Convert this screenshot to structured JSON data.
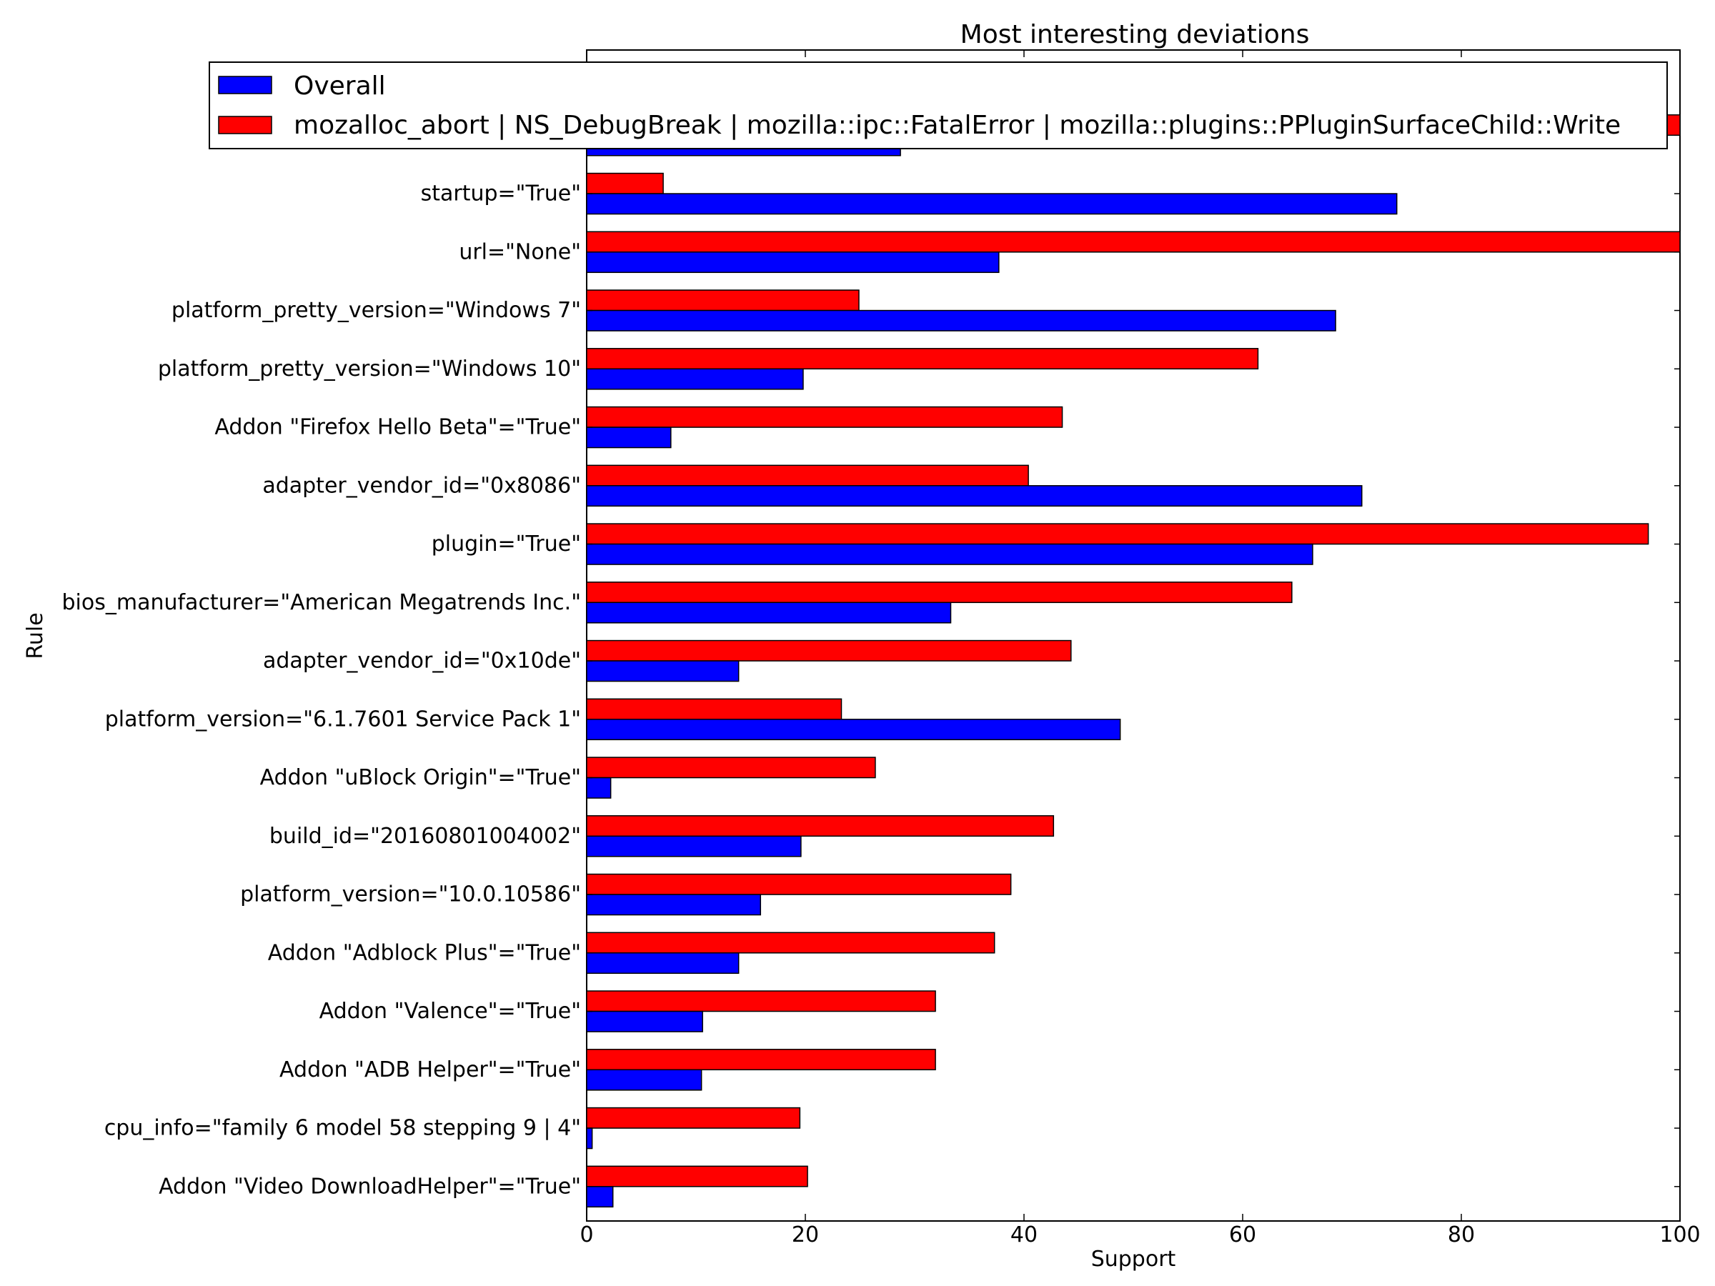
{
  "chart_data": {
    "type": "bar",
    "orientation": "horizontal",
    "title": "Most interesting deviations",
    "xlabel": "Support",
    "ylabel": "Rule",
    "xlim": [
      0,
      100
    ],
    "xticks": [
      0,
      20,
      40,
      60,
      80,
      100
    ],
    "grid": false,
    "legend_position": "top",
    "categories": [
      "",
      "startup=\"True\"",
      "url=\"None\"",
      "platform_pretty_version=\"Windows 7\"",
      "platform_pretty_version=\"Windows 10\"",
      "Addon \"Firefox Hello Beta\"=\"True\"",
      "adapter_vendor_id=\"0x8086\"",
      "plugin=\"True\"",
      "bios_manufacturer=\"American Megatrends Inc.\"",
      "adapter_vendor_id=\"0x10de\"",
      "platform_version=\"6.1.7601 Service Pack 1\"",
      "Addon \"uBlock Origin\"=\"True\"",
      "build_id=\"20160801004002\"",
      "platform_version=\"10.0.10586\"",
      "Addon \"Adblock Plus\"=\"True\"",
      "Addon \"Valence\"=\"True\"",
      "Addon \"ADB Helper\"=\"True\"",
      "cpu_info=\"family 6 model 58 stepping 9 | 4\"",
      "Addon \"Video DownloadHelper\"=\"True\""
    ],
    "series": [
      {
        "name": "Overall",
        "color": "#0000ff",
        "values": [
          28.7,
          74.1,
          37.7,
          68.5,
          19.8,
          7.7,
          70.9,
          66.4,
          33.3,
          13.9,
          48.8,
          2.2,
          19.6,
          15.9,
          13.9,
          10.6,
          10.5,
          0.5,
          2.4
        ]
      },
      {
        "name": "mozalloc_abort | NS_DebugBreak | mozilla::ipc::FatalError | mozilla::plugins::PPluginSurfaceChild::Write",
        "color": "#ff0000",
        "values": [
          100.0,
          7.0,
          100.0,
          24.9,
          61.4,
          43.5,
          40.4,
          97.1,
          64.5,
          44.3,
          23.3,
          26.4,
          42.7,
          38.8,
          37.3,
          31.9,
          31.9,
          19.5,
          20.2
        ]
      }
    ]
  }
}
